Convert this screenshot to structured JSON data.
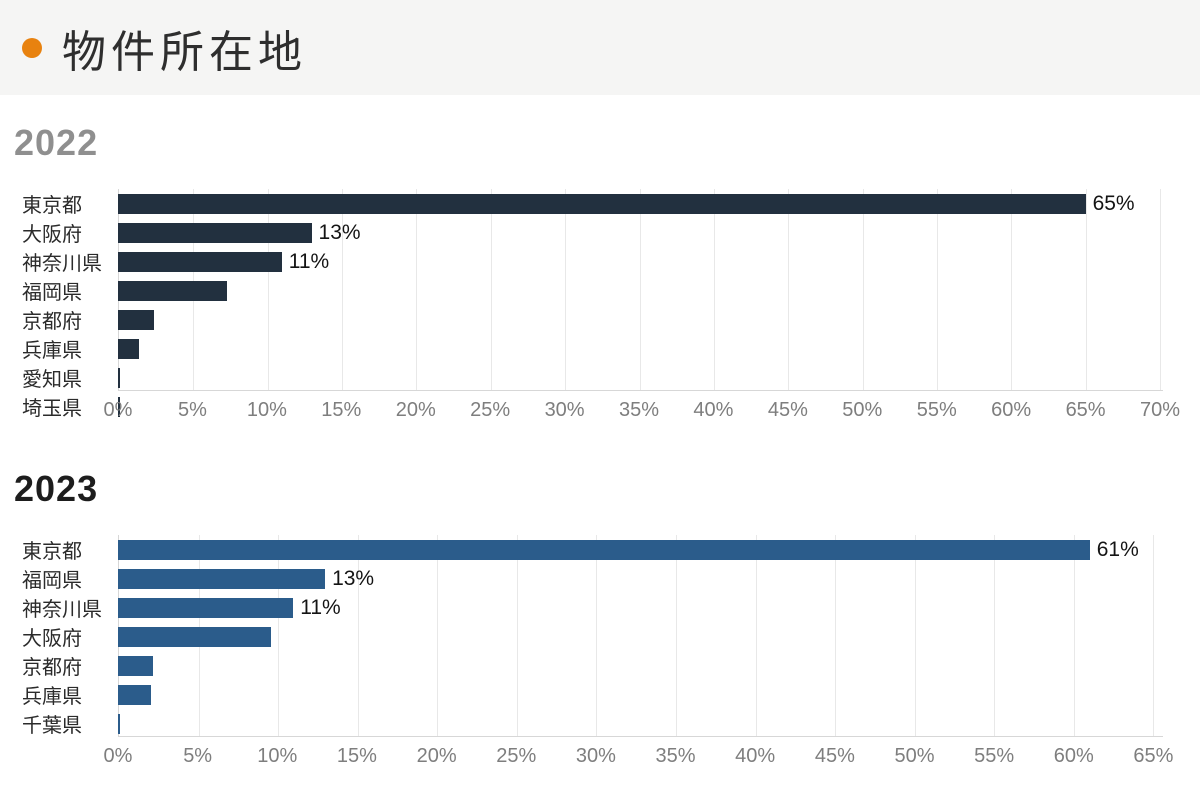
{
  "header": {
    "title": "物件所在地",
    "bullet_color": "#e8820f",
    "band_bg": "#f5f5f4"
  },
  "chart_data": [
    {
      "type": "bar",
      "orientation": "horizontal",
      "title": "2022",
      "title_color": "#8f8f8f",
      "bar_color": "#22303f",
      "categories": [
        "東京都",
        "大阪府",
        "神奈川県",
        "福岡県",
        "京都府",
        "兵庫県",
        "愛知県",
        "埼玉県"
      ],
      "values": [
        65,
        13,
        11,
        7.3,
        2.4,
        1.4,
        0.15,
        0.15
      ],
      "value_labels": [
        "65%",
        "13%",
        "11%",
        null,
        null,
        null,
        null,
        null
      ],
      "x_ticks": [
        "0%",
        "5%",
        "10%",
        "15%",
        "20%",
        "25%",
        "30%",
        "35%",
        "40%",
        "45%",
        "50%",
        "55%",
        "60%",
        "65%",
        "70%"
      ],
      "xlim": [
        0,
        70.2
      ],
      "unit": "%",
      "grid": true,
      "legend": "none"
    },
    {
      "type": "bar",
      "orientation": "horizontal",
      "title": "2023",
      "title_color": "#1d1d1d",
      "bar_color": "#2b5c8b",
      "categories": [
        "東京都",
        "福岡県",
        "神奈川県",
        "大阪府",
        "京都府",
        "兵庫県",
        "千葉県"
      ],
      "values": [
        61,
        13,
        11,
        9.6,
        2.2,
        2.1,
        0.15
      ],
      "value_labels": [
        "61%",
        "13%",
        "11%",
        null,
        null,
        null,
        null
      ],
      "x_ticks": [
        "0%",
        "5%",
        "10%",
        "15%",
        "20%",
        "25%",
        "30%",
        "35%",
        "40%",
        "45%",
        "50%",
        "55%",
        "60%",
        "65%"
      ],
      "xlim": [
        0,
        65.6
      ],
      "unit": "%",
      "grid": true,
      "legend": "none"
    }
  ]
}
